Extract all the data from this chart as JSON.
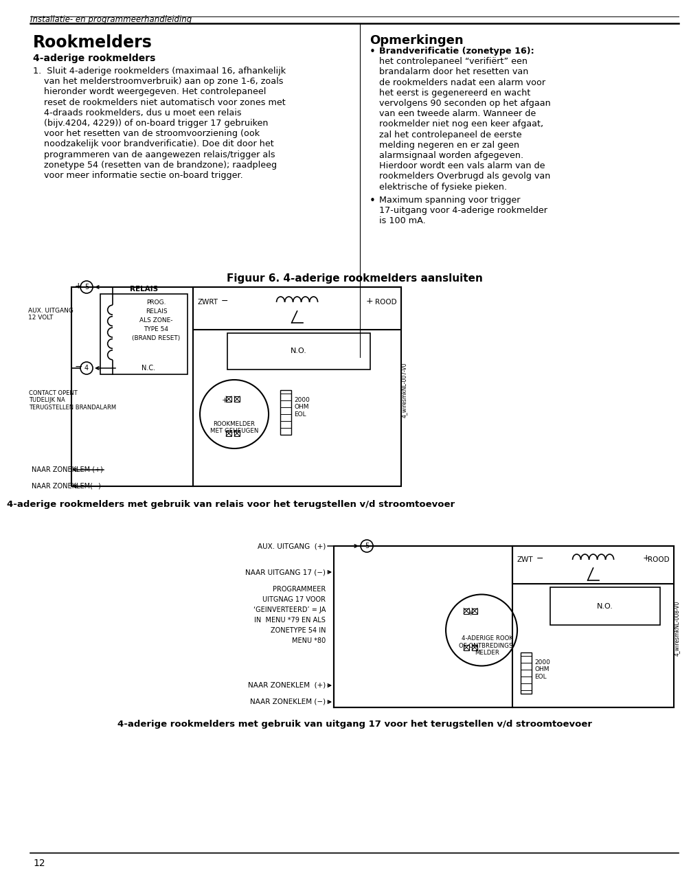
{
  "page_bg": "#ffffff",
  "header_text": "Installatie- en programmeerhandleiding",
  "title_left": "Rookmelders",
  "section_title": "4-aderige rookmelders",
  "title_right": "Opmerkingen",
  "fig_title": "Figuur 6. 4-aderige rookmelders aansluiten",
  "caption1": "4-aderige rookmelders met gebruik van relais voor het terugstellen v/d stroomtoevoer",
  "caption2": "4-aderige rookmelders met gebruik van uitgang 17 voor het terugstellen v/d stroomtoevoer",
  "footer_text": "12",
  "body_lines": [
    "1.  Sluit 4-aderige rookmelders (maximaal 16, afhankelijk",
    "    van het melderstroomverbruik) aan op zone 1-6, zoals",
    "    hieronder wordt weergegeven. Het controlepaneel",
    "    reset de rookmelders niet automatisch voor zones met",
    "    4-draads rookmelders, dus u moet een relais",
    "    (bijv.4204, 4229)) of on-board trigger 17 gebruiken",
    "    voor het resetten van de stroomvoorziening (ook",
    "    noodzakelijk voor brandverificatie). Doe dit door het",
    "    programmeren van de aangewezen relais/trigger als",
    "    zonetype 54 (resetten van de brandzone); raadpleeg",
    "    voor meer informatie sectie on-board trigger."
  ],
  "bullet1_bold": "Brandverificatie (zonetype 16):",
  "bullet1_lines": [
    "het controlepaneel “verifiërt” een",
    "brandalarm door het resetten van",
    "de rookmelders nadat een alarm voor",
    "het eerst is gegenereerd en wacht",
    "vervolgens 90 seconden op het afgaan",
    "van een tweede alarm. Wanneer de",
    "rookmelder niet nog een keer afgaat,",
    "zal het controlepaneel de eerste",
    "melding negeren en er zal geen",
    "alarmsignaal worden afgegeven.",
    "Hierdoor wordt een vals alarm van de",
    "rookmelders Overbrugd als gevolg van",
    "elektrische of fysieke pieken."
  ],
  "bullet2_lines": [
    "Maximum spanning voor trigger",
    "17-uitgang voor 4-aderige rookmelder",
    "is 100 mA."
  ],
  "prog2_lines": [
    "NAAR UITGANG 17 (−)",
    "PROGRAMMEER",
    "UITGNAG 17 VOOR",
    "‘GEINVERTEERD’ = JA",
    "IN  MENU *79 EN ALS",
    "ZONETYPE 54 IN",
    "MENU *80"
  ]
}
